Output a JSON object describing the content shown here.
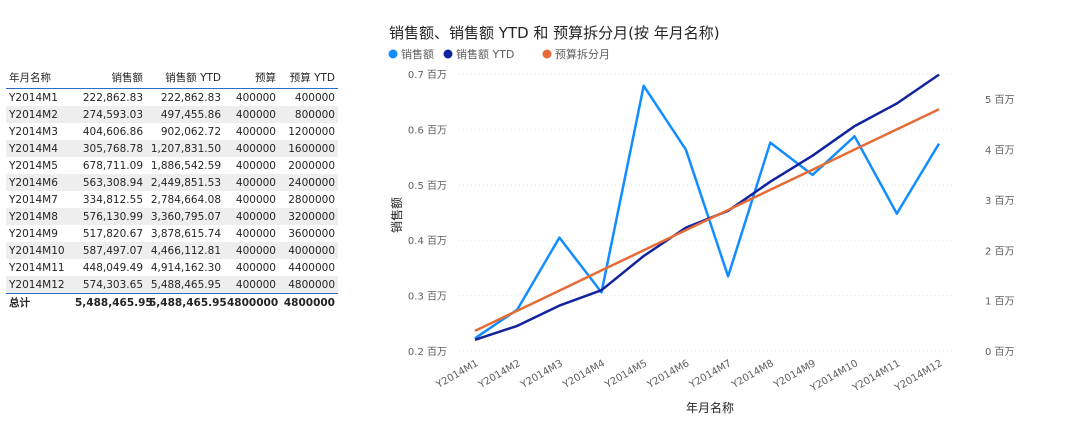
{
  "table": {
    "headers": [
      "年月名称",
      "销售额",
      "销售额 YTD",
      "预算",
      "预算 YTD"
    ],
    "rows": [
      [
        "Y2014M1",
        "222,862.83",
        "222,862.83",
        "400000",
        "400000"
      ],
      [
        "Y2014M2",
        "274,593.03",
        "497,455.86",
        "400000",
        "800000"
      ],
      [
        "Y2014M3",
        "404,606.86",
        "902,062.72",
        "400000",
        "1200000"
      ],
      [
        "Y2014M4",
        "305,768.78",
        "1,207,831.50",
        "400000",
        "1600000"
      ],
      [
        "Y2014M5",
        "678,711.09",
        "1,886,542.59",
        "400000",
        "2000000"
      ],
      [
        "Y2014M6",
        "563,308.94",
        "2,449,851.53",
        "400000",
        "2400000"
      ],
      [
        "Y2014M7",
        "334,812.55",
        "2,784,664.08",
        "400000",
        "2800000"
      ],
      [
        "Y2014M8",
        "576,130.99",
        "3,360,795.07",
        "400000",
        "3200000"
      ],
      [
        "Y2014M9",
        "517,820.67",
        "3,878,615.74",
        "400000",
        "3600000"
      ],
      [
        "Y2014M10",
        "587,497.07",
        "4,466,112.81",
        "400000",
        "4000000"
      ],
      [
        "Y2014M11",
        "448,049.49",
        "4,914,162.30",
        "400000",
        "4400000"
      ],
      [
        "Y2014M12",
        "574,303.65",
        "5,488,465.95",
        "400000",
        "4800000"
      ]
    ],
    "total": [
      "总计",
      "5,488,465.95",
      "5,488,465.95",
      "4800000",
      "4800000"
    ]
  },
  "chart_data": {
    "type": "line",
    "title": "销售额、销售额 YTD 和 预算拆分月(按 年月名称)",
    "xlabel": "年月名称",
    "ylabel": "销售额",
    "categories": [
      "Y2014M1",
      "Y2014M2",
      "Y2014M3",
      "Y2014M4",
      "Y2014M5",
      "Y2014M6",
      "Y2014M7",
      "Y2014M8",
      "Y2014M9",
      "Y2014M10",
      "Y2014M11",
      "Y2014M12"
    ],
    "series": [
      {
        "name": "销售额",
        "axis": "left",
        "color": "#118dff",
        "values": [
          222862.83,
          274593.03,
          404606.86,
          305768.78,
          678711.09,
          563308.94,
          334812.55,
          576130.99,
          517820.67,
          587497.07,
          448049.49,
          574303.65
        ]
      },
      {
        "name": "销售额 YTD",
        "axis": "right",
        "color": "#12239e",
        "values": [
          222862.83,
          497455.86,
          902062.72,
          1207831.5,
          1886542.59,
          2449851.53,
          2784664.08,
          3360795.07,
          3878615.74,
          4466112.81,
          4914162.3,
          5488465.95
        ]
      },
      {
        "name": "预算拆分月",
        "axis": "right",
        "color": "#e66c37",
        "values": [
          400000,
          800000,
          1200000,
          1600000,
          2000000,
          2400000,
          2800000,
          3200000,
          3600000,
          4000000,
          4400000,
          4800000
        ]
      }
    ],
    "left_axis": {
      "ticks": [
        0.2,
        0.3,
        0.4,
        0.5,
        0.6,
        0.7
      ],
      "tick_labels": [
        "0.2 百万",
        "0.3 百万",
        "0.4 百万",
        "0.5 百万",
        "0.6 百万",
        "0.7 百万"
      ],
      "range": [
        0.2,
        0.7
      ],
      "unit_scale": 1000000
    },
    "right_axis": {
      "ticks": [
        0,
        1,
        2,
        3,
        4,
        5
      ],
      "tick_labels": [
        "0 百万",
        "1 百万",
        "2 百万",
        "3 百万",
        "4 百万",
        "5 百万"
      ],
      "range": [
        0,
        5.5
      ],
      "unit_scale": 1000000
    },
    "legend_position": "top-left",
    "grid": true
  }
}
